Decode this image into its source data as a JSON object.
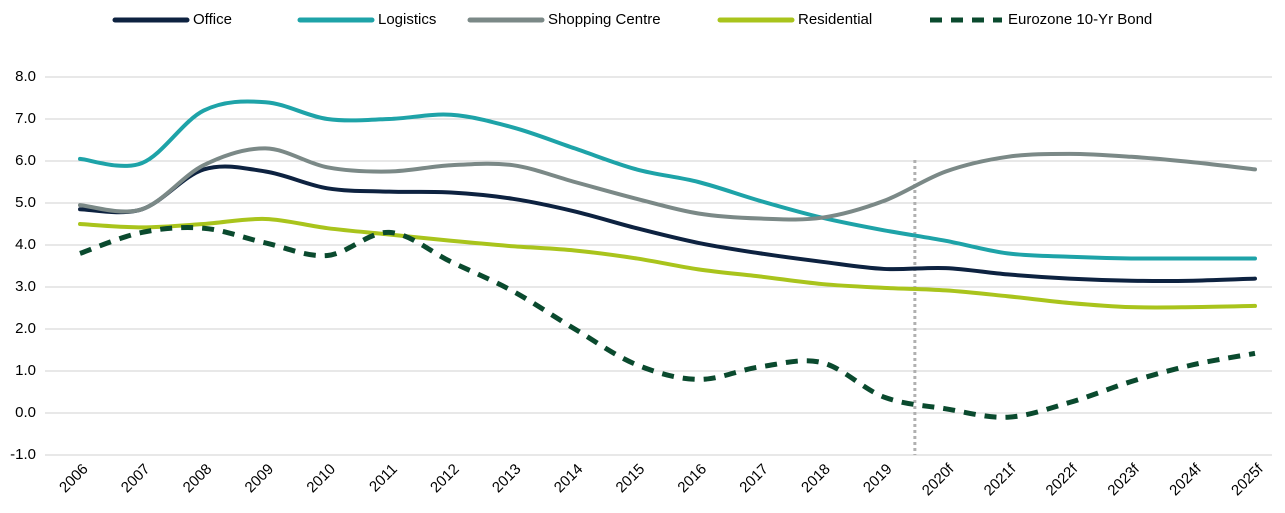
{
  "chart_data": {
    "type": "line",
    "categories": [
      "2006",
      "2007",
      "2008",
      "2009",
      "2010",
      "2011",
      "2012",
      "2013",
      "2014",
      "2015",
      "2016",
      "2017",
      "2018",
      "2019",
      "2020f",
      "2021f",
      "2022f",
      "2023f",
      "2024f",
      "2025f"
    ],
    "series": [
      {
        "name": "Office",
        "color": "#0d2240",
        "dash": false,
        "values": [
          4.85,
          4.85,
          5.8,
          5.75,
          5.35,
          5.27,
          5.25,
          5.1,
          4.8,
          4.4,
          4.05,
          3.8,
          3.6,
          3.43,
          3.45,
          3.3,
          3.2,
          3.15,
          3.15,
          3.2
        ]
      },
      {
        "name": "Logistics",
        "color": "#1ea3a8",
        "dash": false,
        "values": [
          6.05,
          5.95,
          7.2,
          7.4,
          7.0,
          7.0,
          7.1,
          6.8,
          6.3,
          5.8,
          5.5,
          5.05,
          4.65,
          4.35,
          4.1,
          3.8,
          3.72,
          3.68,
          3.68,
          3.68
        ]
      },
      {
        "name": "Shopping Centre",
        "color": "#7b8987",
        "dash": false,
        "values": [
          4.95,
          4.85,
          5.9,
          6.3,
          5.85,
          5.75,
          5.9,
          5.9,
          5.5,
          5.1,
          4.75,
          4.63,
          4.65,
          5.05,
          5.75,
          6.1,
          6.17,
          6.1,
          5.97,
          5.8
        ]
      },
      {
        "name": "Residential",
        "color": "#a9c41c",
        "dash": false,
        "values": [
          4.5,
          4.42,
          4.5,
          4.62,
          4.4,
          4.25,
          4.1,
          3.97,
          3.87,
          3.68,
          3.42,
          3.25,
          3.07,
          2.98,
          2.92,
          2.78,
          2.62,
          2.52,
          2.52,
          2.55
        ]
      },
      {
        "name": "Eurozone 10-Yr Bond",
        "color": "#0a4a2e",
        "dash": true,
        "values": [
          3.8,
          4.3,
          4.4,
          4.05,
          3.75,
          4.3,
          3.6,
          2.9,
          2.0,
          1.15,
          0.8,
          1.1,
          1.2,
          0.38,
          0.1,
          -0.1,
          0.25,
          0.75,
          1.15,
          1.42
        ]
      }
    ],
    "ylim": [
      -1,
      8
    ],
    "yticks": [
      {
        "value": -1,
        "label": "-1.0"
      },
      {
        "value": 0,
        "label": "0.0"
      },
      {
        "value": 1,
        "label": "1.0"
      },
      {
        "value": 2,
        "label": "2.0"
      },
      {
        "value": 3,
        "label": "3.0"
      },
      {
        "value": 4,
        "label": "4.0"
      },
      {
        "value": 5,
        "label": "5.0"
      },
      {
        "value": 6,
        "label": "6.0"
      },
      {
        "value": 7,
        "label": "7.0"
      },
      {
        "value": 8,
        "label": "8.0"
      }
    ],
    "grid": true
  }
}
